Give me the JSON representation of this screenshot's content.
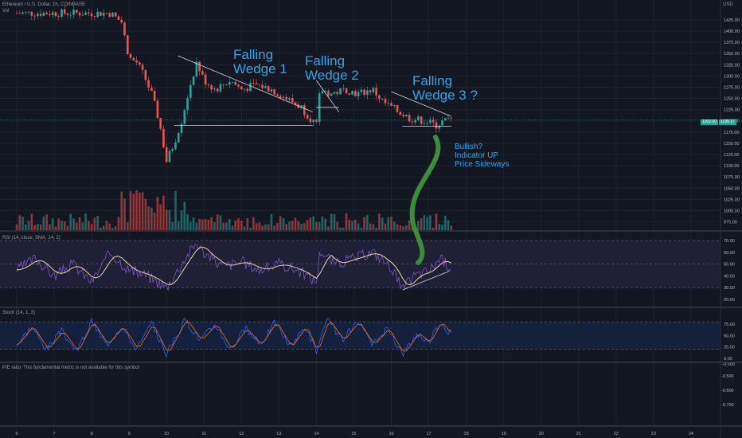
{
  "header": {
    "symbol_line": "Ethereum / U.S. Dollar, 1h, COINBASE",
    "vol_label": "Vol",
    "rsi_label": "RSI (14, close, SMA, 14, 2)",
    "stoch_label": "Stoch (14, 1, 3)",
    "pe_label": "P/E ratio: This fundamental metric is not available for this symbol"
  },
  "price_axis": {
    "currency": "USD",
    "ticks": [
      1425,
      1400,
      1375,
      1350,
      1325,
      1300,
      1275,
      1250,
      1225,
      1200,
      1175,
      1150,
      1125,
      1100,
      1075,
      1050,
      1025,
      1000,
      975
    ],
    "last_price_tag": "1202.00",
    "last_price_tag2": "1199.17"
  },
  "rsi_axis": {
    "ticks": [
      70,
      60,
      50,
      40,
      30,
      20
    ],
    "band": [
      30,
      70
    ]
  },
  "stoch_axis": {
    "ticks": [
      75,
      50,
      25,
      0
    ],
    "band": [
      20,
      80
    ]
  },
  "pe_axis": {
    "ticks": [
      -0.5,
      -0.6,
      -0.7
    ]
  },
  "x_axis": {
    "ticks": [
      "6",
      "7",
      "8",
      "9",
      "10",
      "11",
      "12",
      "13",
      "14",
      "15",
      "16",
      "17",
      "18",
      "19",
      "20",
      "21",
      "22",
      "23",
      "24"
    ]
  },
  "annotations": {
    "wedge1": [
      "Falling",
      "Wedge 1"
    ],
    "wedge2": [
      "Falling",
      "Wedge 2"
    ],
    "wedge3": [
      "Falling",
      "Wedge 3 ?"
    ],
    "note": [
      "Bullish?",
      "Indicator UP",
      "Price Sideways"
    ]
  },
  "colors": {
    "up": "#26a69a",
    "down": "#ef5350",
    "rsi_line": "#7e57c2",
    "rsi_ma": "#e8d5a3",
    "stoch_k": "#2962ff",
    "stoch_d": "#ff6d00",
    "annotation_text": "#2ea6e8",
    "arrow": "#3d8b3d"
  },
  "chart_data": {
    "type": "candlestick",
    "title": "Ethereum / U.S. Dollar, 1h, COINBASE",
    "x_start_day": 6,
    "x_end_day": 17.6,
    "ylim": [
      960,
      1455
    ],
    "close_anchors": [
      [
        6.0,
        1440
      ],
      [
        8.5,
        1440
      ],
      [
        8.8,
        1420
      ],
      [
        9.0,
        1340
      ],
      [
        9.2,
        1330
      ],
      [
        9.4,
        1300
      ],
      [
        9.6,
        1260
      ],
      [
        9.8,
        1200
      ],
      [
        10.0,
        1110
      ],
      [
        10.2,
        1150
      ],
      [
        10.4,
        1200
      ],
      [
        10.6,
        1270
      ],
      [
        10.8,
        1330
      ],
      [
        11.0,
        1290
      ],
      [
        11.3,
        1270
      ],
      [
        11.7,
        1290
      ],
      [
        12.0,
        1270
      ],
      [
        12.4,
        1280
      ],
      [
        12.8,
        1270
      ],
      [
        13.2,
        1250
      ],
      [
        13.6,
        1230
      ],
      [
        14.0,
        1190
      ],
      [
        14.1,
        1270
      ],
      [
        14.4,
        1260
      ],
      [
        14.8,
        1270
      ],
      [
        15.1,
        1260
      ],
      [
        15.5,
        1270
      ],
      [
        15.8,
        1240
      ],
      [
        16.2,
        1220
      ],
      [
        16.5,
        1205
      ],
      [
        16.9,
        1200
      ],
      [
        17.2,
        1190
      ],
      [
        17.4,
        1200
      ],
      [
        17.55,
        1202
      ]
    ],
    "volume_scale_max": 100,
    "rsi_anchors": [
      [
        6.0,
        45
      ],
      [
        6.5,
        55
      ],
      [
        7.0,
        40
      ],
      [
        7.5,
        50
      ],
      [
        8.0,
        35
      ],
      [
        8.5,
        60
      ],
      [
        9.0,
        45
      ],
      [
        9.5,
        40
      ],
      [
        10.0,
        30
      ],
      [
        10.5,
        55
      ],
      [
        10.8,
        68
      ],
      [
        11.0,
        60
      ],
      [
        11.5,
        48
      ],
      [
        12.0,
        52
      ],
      [
        12.5,
        45
      ],
      [
        13.0,
        50
      ],
      [
        13.5,
        45
      ],
      [
        14.0,
        35
      ],
      [
        14.1,
        62
      ],
      [
        14.5,
        50
      ],
      [
        15.0,
        55
      ],
      [
        15.5,
        60
      ],
      [
        16.0,
        48
      ],
      [
        16.3,
        28
      ],
      [
        16.6,
        40
      ],
      [
        17.0,
        44
      ],
      [
        17.3,
        55
      ],
      [
        17.55,
        48
      ]
    ],
    "rsi_trendline": [
      [
        16.3,
        28
      ],
      [
        17.55,
        44
      ]
    ],
    "stoch_anchors": [
      [
        6.0,
        30
      ],
      [
        6.4,
        70
      ],
      [
        6.8,
        20
      ],
      [
        7.2,
        60
      ],
      [
        7.6,
        15
      ],
      [
        8.0,
        80
      ],
      [
        8.4,
        30
      ],
      [
        8.8,
        70
      ],
      [
        9.2,
        20
      ],
      [
        9.6,
        75
      ],
      [
        10.0,
        10
      ],
      [
        10.5,
        85
      ],
      [
        10.9,
        40
      ],
      [
        11.3,
        75
      ],
      [
        11.7,
        20
      ],
      [
        12.1,
        65
      ],
      [
        12.5,
        30
      ],
      [
        12.9,
        80
      ],
      [
        13.3,
        25
      ],
      [
        13.7,
        70
      ],
      [
        14.0,
        15
      ],
      [
        14.3,
        85
      ],
      [
        14.7,
        40
      ],
      [
        15.1,
        80
      ],
      [
        15.5,
        30
      ],
      [
        15.9,
        65
      ],
      [
        16.3,
        10
      ],
      [
        16.7,
        55
      ],
      [
        17.0,
        35
      ],
      [
        17.3,
        80
      ],
      [
        17.55,
        55
      ]
    ],
    "support_lines": [
      [
        [
          10.2,
          1190
        ],
        [
          13.9,
          1190
        ]
      ],
      [
        [
          14.0,
          1230
        ],
        [
          14.6,
          1230
        ]
      ],
      [
        [
          16.3,
          1188
        ],
        [
          17.6,
          1188
        ]
      ]
    ],
    "resistance_lines": [
      [
        [
          10.3,
          1345
        ],
        [
          13.9,
          1220
        ]
      ],
      [
        [
          14.0,
          1290
        ],
        [
          14.6,
          1220
        ]
      ],
      [
        [
          16.0,
          1265
        ],
        [
          17.6,
          1210
        ]
      ]
    ]
  }
}
